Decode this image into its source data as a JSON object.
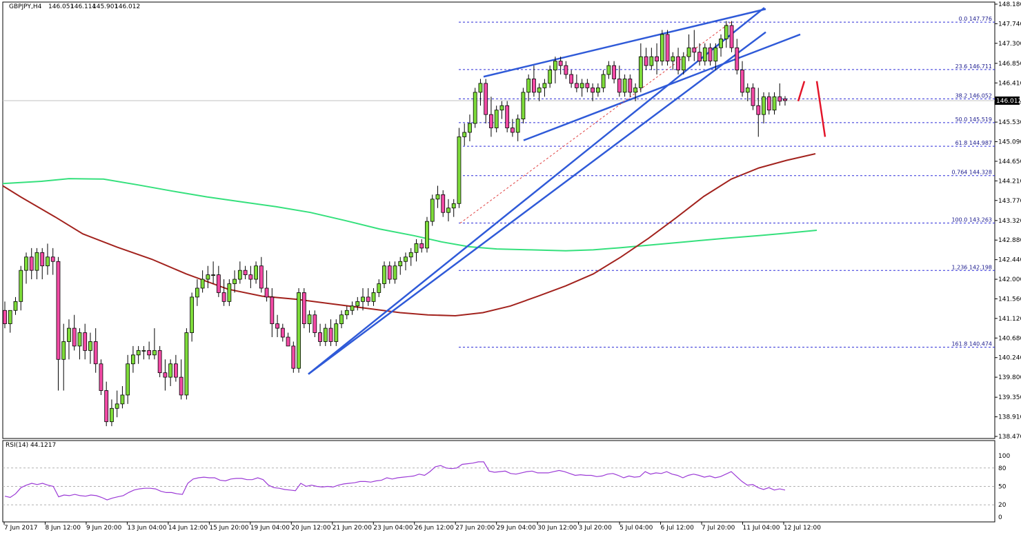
{
  "chart_data": {
    "type": "candlestick",
    "title": "GBPJPY,H4",
    "ohlc_header": [
      "146.051",
      "146.114",
      "145.901",
      "146.012"
    ],
    "current_price": 146.012,
    "current_price_label": "146.012",
    "ylim": [
      138.47,
      148.18
    ],
    "y_tick_labels": [
      "148.180",
      "147.740",
      "147.300",
      "146.850",
      "146.410",
      "145.970",
      "145.530",
      "145.090",
      "144.650",
      "144.210",
      "143.770",
      "143.320",
      "142.880",
      "142.440",
      "142.000",
      "141.560",
      "141.120",
      "140.680",
      "140.240",
      "139.800",
      "139.350",
      "138.910",
      "138.470"
    ],
    "x_tick_labels": [
      "7 Jun 2017",
      "8 Jun 12:00",
      "9 Jun 20:00",
      "13 Jun 04:00",
      "14 Jun 12:00",
      "15 Jun 20:00",
      "19 Jun 04:00",
      "20 Jun 12:00",
      "21 Jun 20:00",
      "23 Jun 04:00",
      "26 Jun 12:00",
      "27 Jun 20:00",
      "29 Jun 04:00",
      "30 Jun 12:00",
      "3 Jul 20:00",
      "5 Jul 04:00",
      "6 Jul 12:00",
      "7 Jul 20:00",
      "11 Jul 04:00",
      "12 Jul 12:00"
    ],
    "candles": [
      [
        141.3,
        141.5,
        140.9,
        141.0
      ],
      [
        141.0,
        141.3,
        140.8,
        141.3
      ],
      [
        141.3,
        141.6,
        141.2,
        141.5
      ],
      [
        141.5,
        142.3,
        141.3,
        142.2
      ],
      [
        142.2,
        142.6,
        141.9,
        142.5
      ],
      [
        142.5,
        142.7,
        142.0,
        142.2
      ],
      [
        142.2,
        142.7,
        142.0,
        142.6
      ],
      [
        142.6,
        142.7,
        142.0,
        142.3
      ],
      [
        142.3,
        142.8,
        142.1,
        142.5
      ],
      [
        142.5,
        142.7,
        142.1,
        142.4
      ],
      [
        142.4,
        142.5,
        139.5,
        140.2
      ],
      [
        140.2,
        141.0,
        139.5,
        140.6
      ],
      [
        140.6,
        141.1,
        140.2,
        140.9
      ],
      [
        140.9,
        141.2,
        140.4,
        140.5
      ],
      [
        140.5,
        140.9,
        140.2,
        140.8
      ],
      [
        140.8,
        141.0,
        140.2,
        140.4
      ],
      [
        140.4,
        140.8,
        140.1,
        140.6
      ],
      [
        140.6,
        140.9,
        139.9,
        140.1
      ],
      [
        140.1,
        140.2,
        139.4,
        139.5
      ],
      [
        139.5,
        139.7,
        138.7,
        138.8
      ],
      [
        138.8,
        139.3,
        138.7,
        139.1
      ],
      [
        139.1,
        139.5,
        138.9,
        139.2
      ],
      [
        139.2,
        139.6,
        139.1,
        139.4
      ],
      [
        139.4,
        140.3,
        139.2,
        140.1
      ],
      [
        140.1,
        140.5,
        139.9,
        140.3
      ],
      [
        140.3,
        140.5,
        140.1,
        140.4
      ],
      [
        140.4,
        140.5,
        140.2,
        140.4
      ],
      [
        140.4,
        140.6,
        140.2,
        140.3
      ],
      [
        140.3,
        140.9,
        140.2,
        140.4
      ],
      [
        140.4,
        140.5,
        139.8,
        139.9
      ],
      [
        139.9,
        140.2,
        139.5,
        139.8
      ],
      [
        139.8,
        140.2,
        139.6,
        140.1
      ],
      [
        140.1,
        140.3,
        139.7,
        139.8
      ],
      [
        139.8,
        140.2,
        139.3,
        139.4
      ],
      [
        139.4,
        140.9,
        139.3,
        140.8
      ],
      [
        140.8,
        141.7,
        140.6,
        141.6
      ],
      [
        141.6,
        142.0,
        141.4,
        141.8
      ],
      [
        141.8,
        142.2,
        141.7,
        142.0
      ],
      [
        142.0,
        142.3,
        141.8,
        142.1
      ],
      [
        142.1,
        142.4,
        141.9,
        142.1
      ],
      [
        142.1,
        142.3,
        141.6,
        141.7
      ],
      [
        141.7,
        142.0,
        141.4,
        141.5
      ],
      [
        141.5,
        142.0,
        141.4,
        141.9
      ],
      [
        141.9,
        142.2,
        141.7,
        142.0
      ],
      [
        142.0,
        142.4,
        141.9,
        142.2
      ],
      [
        142.2,
        142.3,
        142.0,
        142.1
      ],
      [
        142.1,
        142.3,
        141.8,
        142.0
      ],
      [
        142.0,
        142.4,
        141.9,
        142.3
      ],
      [
        142.3,
        142.5,
        141.7,
        141.8
      ],
      [
        141.8,
        142.2,
        141.5,
        141.6
      ],
      [
        141.6,
        141.8,
        140.7,
        141.0
      ],
      [
        141.0,
        141.2,
        140.7,
        140.9
      ],
      [
        140.9,
        141.0,
        140.6,
        140.7
      ],
      [
        140.7,
        140.8,
        140.5,
        140.5
      ],
      [
        140.5,
        140.6,
        139.9,
        140.0
      ],
      [
        140.0,
        141.8,
        139.9,
        141.7
      ],
      [
        141.7,
        141.8,
        140.9,
        141.0
      ],
      [
        141.0,
        141.3,
        140.8,
        141.2
      ],
      [
        141.2,
        141.3,
        140.7,
        140.8
      ],
      [
        140.8,
        141.0,
        140.5,
        140.6
      ],
      [
        140.6,
        141.0,
        140.5,
        140.9
      ],
      [
        140.9,
        141.1,
        140.5,
        140.6
      ],
      [
        140.6,
        141.1,
        140.5,
        141.0
      ],
      [
        141.0,
        141.3,
        140.9,
        141.2
      ],
      [
        141.2,
        141.4,
        141.1,
        141.3
      ],
      [
        141.3,
        141.5,
        141.2,
        141.4
      ],
      [
        141.4,
        141.6,
        141.3,
        141.5
      ],
      [
        141.5,
        141.8,
        141.3,
        141.6
      ],
      [
        141.6,
        141.8,
        141.4,
        141.5
      ],
      [
        141.5,
        141.8,
        141.4,
        141.7
      ],
      [
        141.7,
        142.0,
        141.6,
        141.9
      ],
      [
        141.9,
        142.4,
        141.8,
        142.3
      ],
      [
        142.3,
        142.4,
        141.9,
        142.0
      ],
      [
        142.0,
        142.4,
        141.9,
        142.3
      ],
      [
        142.3,
        142.5,
        142.1,
        142.4
      ],
      [
        142.4,
        142.6,
        142.2,
        142.5
      ],
      [
        142.5,
        142.7,
        142.3,
        142.6
      ],
      [
        142.6,
        142.9,
        142.4,
        142.8
      ],
      [
        142.8,
        142.9,
        142.6,
        142.7
      ],
      [
        142.7,
        143.4,
        142.6,
        143.3
      ],
      [
        143.3,
        143.9,
        143.2,
        143.8
      ],
      [
        143.8,
        144.1,
        143.6,
        143.9
      ],
      [
        143.9,
        144.0,
        143.4,
        143.5
      ],
      [
        143.5,
        143.8,
        143.3,
        143.6
      ],
      [
        143.6,
        143.8,
        143.4,
        143.7
      ],
      [
        143.7,
        145.4,
        143.6,
        145.2
      ],
      [
        145.2,
        145.5,
        145.0,
        145.3
      ],
      [
        145.3,
        145.7,
        145.1,
        145.5
      ],
      [
        145.5,
        146.3,
        145.4,
        146.2
      ],
      [
        146.2,
        146.5,
        145.9,
        146.4
      ],
      [
        146.4,
        146.5,
        145.5,
        145.7
      ],
      [
        145.7,
        146.1,
        145.2,
        145.4
      ],
      [
        145.4,
        145.9,
        145.3,
        145.8
      ],
      [
        145.8,
        146.0,
        145.6,
        145.9
      ],
      [
        145.9,
        146.0,
        145.3,
        145.4
      ],
      [
        145.4,
        145.6,
        145.2,
        145.3
      ],
      [
        145.3,
        145.7,
        145.1,
        145.6
      ],
      [
        145.6,
        146.3,
        145.5,
        146.2
      ],
      [
        146.2,
        146.6,
        146.0,
        146.5
      ],
      [
        146.5,
        146.8,
        146.1,
        146.2
      ],
      [
        146.2,
        146.4,
        146.0,
        146.3
      ],
      [
        146.3,
        146.5,
        146.1,
        146.4
      ],
      [
        146.4,
        146.8,
        146.3,
        146.7
      ],
      [
        146.7,
        147.0,
        146.4,
        146.9
      ],
      [
        146.9,
        147.0,
        146.6,
        146.8
      ],
      [
        146.8,
        146.9,
        146.5,
        146.6
      ],
      [
        146.6,
        146.7,
        146.3,
        146.4
      ],
      [
        146.4,
        146.6,
        146.2,
        146.3
      ],
      [
        146.3,
        146.5,
        146.1,
        146.4
      ],
      [
        146.4,
        146.5,
        146.2,
        146.3
      ],
      [
        146.3,
        146.4,
        146.0,
        146.2
      ],
      [
        146.2,
        146.4,
        146.1,
        146.3
      ],
      [
        146.3,
        146.7,
        146.2,
        146.6
      ],
      [
        146.6,
        146.9,
        146.5,
        146.8
      ],
      [
        146.8,
        146.9,
        146.4,
        146.5
      ],
      [
        146.5,
        146.8,
        146.1,
        146.2
      ],
      [
        146.2,
        146.6,
        146.1,
        146.5
      ],
      [
        146.5,
        146.6,
        146.1,
        146.2
      ],
      [
        146.2,
        146.4,
        146.0,
        146.3
      ],
      [
        146.3,
        147.3,
        146.2,
        147.0
      ],
      [
        147.0,
        147.2,
        146.7,
        146.8
      ],
      [
        146.8,
        147.2,
        146.7,
        147.0
      ],
      [
        147.0,
        147.3,
        146.6,
        146.9
      ],
      [
        146.9,
        147.6,
        146.8,
        147.5
      ],
      [
        147.5,
        147.6,
        146.8,
        146.9
      ],
      [
        146.9,
        147.1,
        146.7,
        147.0
      ],
      [
        147.0,
        147.2,
        146.6,
        146.7
      ],
      [
        146.7,
        147.1,
        146.6,
        147.0
      ],
      [
        147.0,
        147.5,
        146.9,
        147.2
      ],
      [
        147.2,
        147.6,
        146.9,
        147.1
      ],
      [
        147.1,
        147.3,
        146.8,
        146.9
      ],
      [
        146.9,
        147.3,
        146.8,
        147.2
      ],
      [
        147.2,
        147.3,
        146.8,
        146.9
      ],
      [
        146.9,
        147.3,
        146.7,
        147.2
      ],
      [
        147.2,
        147.5,
        147.0,
        147.4
      ],
      [
        147.4,
        147.8,
        147.2,
        147.7
      ],
      [
        147.7,
        147.8,
        147.1,
        147.2
      ],
      [
        147.2,
        147.4,
        146.6,
        146.7
      ],
      [
        146.7,
        146.9,
        146.1,
        146.2
      ],
      [
        146.2,
        146.4,
        146.0,
        146.3
      ],
      [
        146.3,
        146.4,
        145.8,
        145.9
      ],
      [
        145.9,
        146.3,
        145.2,
        145.7
      ],
      [
        145.7,
        146.2,
        145.5,
        146.1
      ],
      [
        146.1,
        146.2,
        145.7,
        145.8
      ],
      [
        145.8,
        146.2,
        145.7,
        146.1
      ],
      [
        146.1,
        146.4,
        145.9,
        146.0
      ],
      [
        146.051,
        146.114,
        145.901,
        146.012
      ]
    ],
    "ma_red": [
      [
        4,
        144.1
      ],
      [
        30,
        143.85
      ],
      [
        80,
        143.4
      ],
      [
        120,
        143.02
      ],
      [
        170,
        142.72
      ],
      [
        220,
        142.45
      ],
      [
        270,
        142.12
      ],
      [
        330,
        141.78
      ],
      [
        380,
        141.62
      ],
      [
        430,
        141.55
      ],
      [
        480,
        141.45
      ],
      [
        530,
        141.35
      ],
      [
        580,
        141.25
      ],
      [
        620,
        141.2
      ],
      [
        660,
        141.18
      ],
      [
        700,
        141.25
      ],
      [
        740,
        141.4
      ],
      [
        780,
        141.62
      ],
      [
        820,
        141.85
      ],
      [
        860,
        142.12
      ],
      [
        900,
        142.5
      ],
      [
        940,
        142.92
      ],
      [
        980,
        143.38
      ],
      [
        1020,
        143.86
      ],
      [
        1060,
        144.25
      ],
      [
        1100,
        144.5
      ],
      [
        1140,
        144.67
      ],
      [
        1182,
        144.82
      ]
    ],
    "ma_green": [
      [
        4,
        144.15
      ],
      [
        60,
        144.2
      ],
      [
        100,
        144.26
      ],
      [
        150,
        144.25
      ],
      [
        200,
        144.12
      ],
      [
        250,
        143.98
      ],
      [
        300,
        143.85
      ],
      [
        350,
        143.74
      ],
      [
        400,
        143.63
      ],
      [
        450,
        143.5
      ],
      [
        500,
        143.32
      ],
      [
        550,
        143.13
      ],
      [
        600,
        142.98
      ],
      [
        640,
        142.84
      ],
      [
        680,
        142.73
      ],
      [
        720,
        142.68
      ],
      [
        770,
        142.66
      ],
      [
        820,
        142.64
      ],
      [
        860,
        142.66
      ],
      [
        900,
        142.71
      ],
      [
        950,
        142.78
      ],
      [
        1000,
        142.85
      ],
      [
        1050,
        142.92
      ],
      [
        1100,
        142.98
      ],
      [
        1150,
        143.05
      ],
      [
        1184,
        143.1
      ]
    ],
    "fib_levels": [
      {
        "label": "0.0 147.776",
        "value": 147.776
      },
      {
        "label": "23.6 146.711",
        "value": 146.711
      },
      {
        "label": "38.2 146.052",
        "value": 146.052
      },
      {
        "label": "50.0 145.519",
        "value": 145.519
      },
      {
        "label": "61.8 144.987",
        "value": 144.987
      },
      {
        "label": "0.764 144.328",
        "value": 144.328
      },
      {
        "label": "100.0 143.263",
        "value": 143.263
      },
      {
        "label": "1.236 142.198",
        "value": 142.198
      },
      {
        "label": "161.8 140.474",
        "value": 140.474
      }
    ],
    "trend_lines": [
      {
        "kind": "blue",
        "p1": [
          447,
          139.87
        ],
        "p2": [
          1108,
          148.1
        ]
      },
      {
        "kind": "blue",
        "p1": [
          701,
          146.55
        ],
        "p2": [
          1110,
          148.07
        ]
      },
      {
        "kind": "blue",
        "p1": [
          759,
          145.12
        ],
        "p2": [
          1160,
          147.5
        ]
      },
      {
        "kind": "blue",
        "p1": [
          447,
          139.87
        ],
        "p2": [
          1110,
          147.55
        ]
      },
      {
        "kind": "red-dashed",
        "p1": [
          667,
          143.26
        ],
        "p2": [
          1060,
          147.78
        ]
      },
      {
        "kind": "red-arrow",
        "p1": [
          1157,
          146.0
        ],
        "p2": [
          1166,
          146.45
        ]
      },
      {
        "kind": "red-arrow",
        "p1": [
          1184,
          146.45
        ],
        "p2": [
          1196,
          145.2
        ]
      }
    ],
    "rsi": {
      "label": "RSI(14) 44.1217",
      "ylim": [
        0,
        100
      ],
      "y_tick_labels": [
        "100",
        "80",
        "50",
        "20",
        "0"
      ],
      "levels": [
        80,
        50,
        20
      ],
      "values": [
        34,
        32,
        38,
        48,
        52,
        55,
        53,
        55,
        52,
        50,
        33,
        36,
        35,
        37,
        35,
        34,
        36,
        35,
        32,
        28,
        31,
        33,
        35,
        40,
        44,
        46,
        47,
        47,
        46,
        42,
        40,
        40,
        38,
        37,
        55,
        62,
        64,
        65,
        64,
        64,
        60,
        59,
        62,
        63,
        63,
        61,
        61,
        64,
        61,
        52,
        48,
        47,
        45,
        44,
        43,
        55,
        50,
        52,
        50,
        49,
        50,
        49,
        52,
        54,
        55,
        56,
        58,
        58,
        57,
        59,
        60,
        64,
        62,
        64,
        65,
        66,
        67,
        70,
        68,
        74,
        82,
        84,
        80,
        79,
        80,
        86,
        87,
        88,
        90,
        90,
        75,
        73,
        74,
        75,
        71,
        70,
        72,
        74,
        75,
        72,
        72,
        72,
        74,
        76,
        74,
        71,
        68,
        69,
        68,
        68,
        66,
        67,
        70,
        71,
        68,
        64,
        67,
        65,
        66,
        74,
        70,
        72,
        71,
        74,
        70,
        68,
        64,
        68,
        70,
        68,
        65,
        67,
        64,
        66,
        70,
        74,
        66,
        58,
        52,
        53,
        48,
        45,
        48,
        44,
        46,
        44
      ]
    }
  }
}
